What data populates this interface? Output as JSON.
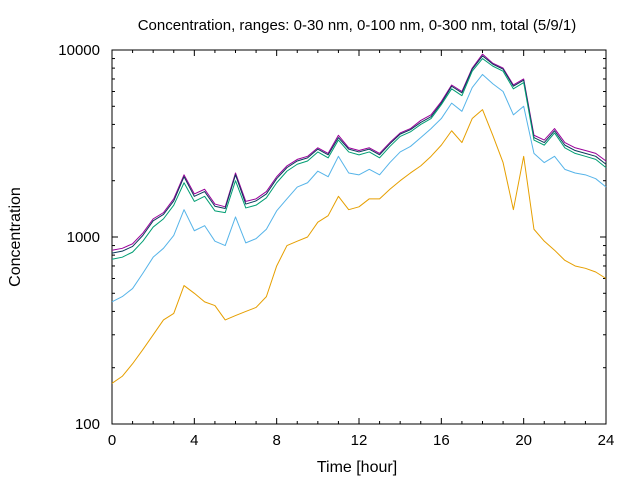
{
  "chart_data": {
    "type": "line",
    "title": "Concentration, ranges: 0-30 nm, 0-100 nm, 0-300 nm, total (5/9/1)",
    "xlabel": "Time [hour]",
    "ylabel": "Concentration",
    "xlim": [
      0,
      24
    ],
    "ylim": [
      100,
      10000
    ],
    "yscale": "log",
    "grid": false,
    "legend": "none",
    "xticks": [
      0,
      4,
      8,
      12,
      16,
      20,
      24
    ],
    "xtick_labels": [
      "0",
      "4",
      "8",
      "12",
      "16",
      "20",
      "24"
    ],
    "yticks": [
      100,
      1000,
      10000
    ],
    "ytick_labels": [
      "100",
      "1000",
      "10000"
    ],
    "x": [
      0,
      0.5,
      1,
      1.5,
      2,
      2.5,
      3,
      3.5,
      4,
      4.5,
      5,
      5.5,
      6,
      6.5,
      7,
      7.5,
      8,
      8.5,
      9,
      9.5,
      10,
      10.5,
      11,
      11.5,
      12,
      12.5,
      13,
      13.5,
      14,
      14.5,
      15,
      15.5,
      16,
      16.5,
      17,
      17.5,
      18,
      18.5,
      19,
      19.5,
      20,
      20.5,
      21,
      21.5,
      22,
      22.5,
      23,
      23.5,
      24
    ],
    "series": [
      {
        "color": "#990099",
        "values": [
          850,
          870,
          920,
          1050,
          1250,
          1350,
          1600,
          2150,
          1700,
          1800,
          1500,
          1450,
          2200,
          1550,
          1600,
          1750,
          2100,
          2400,
          2600,
          2700,
          3000,
          2800,
          3500,
          3000,
          2900,
          3000,
          2800,
          3200,
          3600,
          3800,
          4200,
          4500,
          5300,
          6500,
          6000,
          8000,
          9500,
          8500,
          8000,
          6500,
          7000,
          3500,
          3300,
          3800,
          3200,
          3000,
          2900,
          2800,
          2550
        ]
      },
      {
        "color": "#0a3a5c",
        "values": [
          820,
          840,
          890,
          1020,
          1220,
          1320,
          1560,
          2100,
          1650,
          1750,
          1460,
          1420,
          2150,
          1500,
          1560,
          1700,
          2050,
          2350,
          2550,
          2650,
          2950,
          2750,
          3400,
          2950,
          2850,
          2950,
          2750,
          3150,
          3550,
          3750,
          4100,
          4400,
          5200,
          6400,
          5900,
          7900,
          9300,
          8400,
          7900,
          6400,
          6900,
          3400,
          3200,
          3700,
          3100,
          2900,
          2800,
          2700,
          2450
        ]
      },
      {
        "color": "#009e73",
        "values": [
          760,
          780,
          830,
          950,
          1130,
          1250,
          1480,
          1950,
          1550,
          1650,
          1380,
          1350,
          2000,
          1430,
          1480,
          1620,
          1950,
          2250,
          2450,
          2550,
          2850,
          2650,
          3300,
          2850,
          2750,
          2850,
          2650,
          3050,
          3450,
          3650,
          4000,
          4300,
          5100,
          6200,
          5700,
          7700,
          9000,
          8200,
          7700,
          6200,
          6700,
          3300,
          3100,
          3600,
          3000,
          2800,
          2700,
          2600,
          2350
        ]
      },
      {
        "color": "#56b4e9",
        "values": [
          450,
          480,
          530,
          640,
          780,
          870,
          1020,
          1400,
          1080,
          1150,
          950,
          900,
          1280,
          930,
          980,
          1100,
          1380,
          1600,
          1850,
          1950,
          2250,
          2100,
          2700,
          2200,
          2150,
          2300,
          2150,
          2500,
          2850,
          3050,
          3400,
          3800,
          4300,
          5200,
          4700,
          6300,
          7400,
          6600,
          6000,
          4500,
          5000,
          2800,
          2500,
          2700,
          2300,
          2200,
          2150,
          2050,
          1850
        ]
      },
      {
        "color": "#e69f00",
        "values": [
          165,
          180,
          210,
          250,
          300,
          360,
          390,
          550,
          500,
          450,
          430,
          360,
          380,
          400,
          420,
          480,
          700,
          900,
          950,
          1000,
          1200,
          1300,
          1650,
          1400,
          1450,
          1600,
          1600,
          1800,
          2000,
          2200,
          2400,
          2700,
          3100,
          3700,
          3200,
          4300,
          4800,
          3500,
          2500,
          1400,
          2700,
          1100,
          950,
          850,
          750,
          700,
          680,
          650,
          600
        ]
      }
    ]
  }
}
